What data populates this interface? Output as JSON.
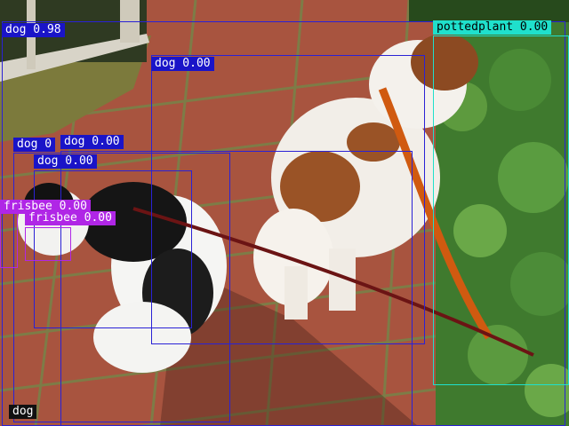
{
  "colors": {
    "dog": "#2a22d6",
    "dog_label_bg": "#1a14c8",
    "frisbee": "#b026e6",
    "pottedplant": "#1fe0cc",
    "dog_bottom_label_bg": "#111111"
  },
  "detections": [
    {
      "label": "dog 0.98",
      "class": "dog"
    },
    {
      "label": "dog 0.00",
      "class": "dog"
    },
    {
      "label": "dog 0",
      "class": "dog"
    },
    {
      "label": "dog 0.00",
      "class": "dog"
    },
    {
      "label": "dog 0.00",
      "class": "dog"
    },
    {
      "label": "frisbee 0.00",
      "class": "frisbee"
    },
    {
      "label": "frisbee 0.00",
      "class": "frisbee"
    },
    {
      "label": "pottedplant 0.00",
      "class": "pottedplant"
    },
    {
      "label": "dog",
      "class": "dog"
    }
  ]
}
